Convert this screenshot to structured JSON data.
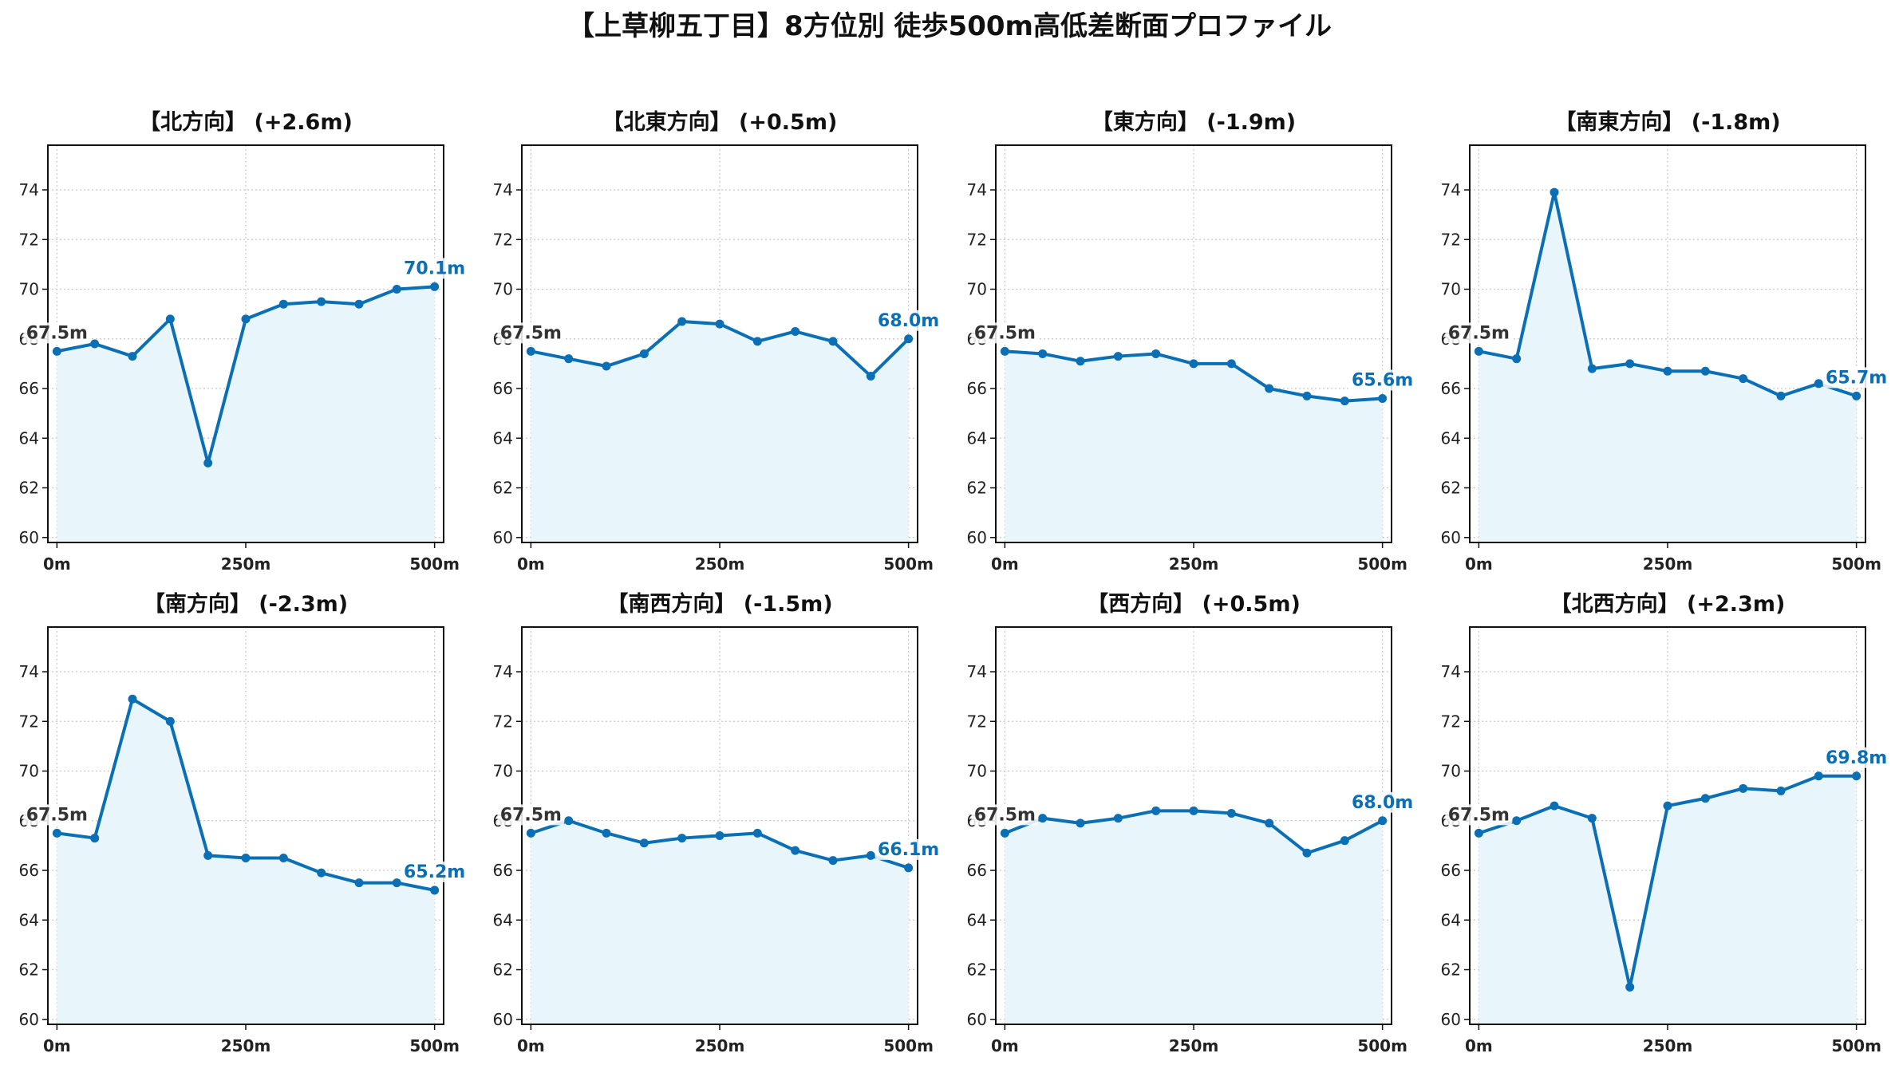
{
  "figure_title": "【上草柳五丁目】8方位別 徒歩500m高低差断面プロファイル",
  "colors": {
    "line": "#1f77b4",
    "line_dark": "#0a6fb5",
    "fill": "#e8f5fb",
    "grid": "#c8c8c8"
  },
  "chart_data": [
    {
      "type": "area",
      "title": "【北方向】 (+2.6m)",
      "x": [
        0,
        50,
        100,
        150,
        200,
        250,
        300,
        350,
        400,
        450,
        500
      ],
      "y": [
        67.5,
        67.8,
        67.3,
        68.8,
        63.0,
        68.8,
        69.4,
        69.5,
        69.4,
        70.0,
        70.1
      ],
      "xticks": [
        "0m",
        "250m",
        "500m"
      ],
      "yticks": [
        60,
        62,
        64,
        66,
        68,
        70,
        72,
        74
      ],
      "ylim": [
        59.8,
        75.8
      ],
      "xlim": [
        -12,
        512
      ],
      "start_label": "67.5m",
      "end_label": "70.1m",
      "grid": true
    },
    {
      "type": "area",
      "title": "【北東方向】 (+0.5m)",
      "x": [
        0,
        50,
        100,
        150,
        200,
        250,
        300,
        350,
        400,
        450,
        500
      ],
      "y": [
        67.5,
        67.2,
        66.9,
        67.4,
        68.7,
        68.6,
        67.9,
        68.3,
        67.9,
        66.5,
        68.0
      ],
      "xticks": [
        "0m",
        "250m",
        "500m"
      ],
      "yticks": [
        60,
        62,
        64,
        66,
        68,
        70,
        72,
        74
      ],
      "ylim": [
        59.8,
        75.8
      ],
      "xlim": [
        -12,
        512
      ],
      "start_label": "67.5m",
      "end_label": "68.0m",
      "grid": true
    },
    {
      "type": "area",
      "title": "【東方向】 (-1.9m)",
      "x": [
        0,
        50,
        100,
        150,
        200,
        250,
        300,
        350,
        400,
        450,
        500
      ],
      "y": [
        67.5,
        67.4,
        67.1,
        67.3,
        67.4,
        67.0,
        67.0,
        66.0,
        65.7,
        65.5,
        65.6
      ],
      "xticks": [
        "0m",
        "250m",
        "500m"
      ],
      "yticks": [
        60,
        62,
        64,
        66,
        68,
        70,
        72,
        74
      ],
      "ylim": [
        59.8,
        75.8
      ],
      "xlim": [
        -12,
        512
      ],
      "start_label": "67.5m",
      "end_label": "65.6m",
      "grid": true
    },
    {
      "type": "area",
      "title": "【南東方向】 (-1.8m)",
      "x": [
        0,
        50,
        100,
        150,
        200,
        250,
        300,
        350,
        400,
        450,
        500
      ],
      "y": [
        67.5,
        67.2,
        73.9,
        66.8,
        67.0,
        66.7,
        66.7,
        66.4,
        65.7,
        66.2,
        65.7
      ],
      "xticks": [
        "0m",
        "250m",
        "500m"
      ],
      "yticks": [
        60,
        62,
        64,
        66,
        68,
        70,
        72,
        74
      ],
      "ylim": [
        59.8,
        75.8
      ],
      "xlim": [
        -12,
        512
      ],
      "start_label": "67.5m",
      "end_label": "65.7m",
      "grid": true
    },
    {
      "type": "area",
      "title": "【南方向】 (-2.3m)",
      "x": [
        0,
        50,
        100,
        150,
        200,
        250,
        300,
        350,
        400,
        450,
        500
      ],
      "y": [
        67.5,
        67.3,
        72.9,
        72.0,
        66.6,
        66.5,
        66.5,
        65.9,
        65.5,
        65.5,
        65.2
      ],
      "xticks": [
        "0m",
        "250m",
        "500m"
      ],
      "yticks": [
        60,
        62,
        64,
        66,
        68,
        70,
        72,
        74
      ],
      "ylim": [
        59.8,
        75.8
      ],
      "xlim": [
        -12,
        512
      ],
      "start_label": "67.5m",
      "end_label": "65.2m",
      "grid": true
    },
    {
      "type": "area",
      "title": "【南西方向】 (-1.5m)",
      "x": [
        0,
        50,
        100,
        150,
        200,
        250,
        300,
        350,
        400,
        450,
        500
      ],
      "y": [
        67.5,
        68.0,
        67.5,
        67.1,
        67.3,
        67.4,
        67.5,
        66.8,
        66.4,
        66.6,
        66.1
      ],
      "xticks": [
        "0m",
        "250m",
        "500m"
      ],
      "yticks": [
        60,
        62,
        64,
        66,
        68,
        70,
        72,
        74
      ],
      "ylim": [
        59.8,
        75.8
      ],
      "xlim": [
        -12,
        512
      ],
      "start_label": "67.5m",
      "end_label": "66.1m",
      "grid": true
    },
    {
      "type": "area",
      "title": "【西方向】 (+0.5m)",
      "x": [
        0,
        50,
        100,
        150,
        200,
        250,
        300,
        350,
        400,
        450,
        500
      ],
      "y": [
        67.5,
        68.1,
        67.9,
        68.1,
        68.4,
        68.4,
        68.3,
        67.9,
        66.7,
        67.2,
        68.0
      ],
      "xticks": [
        "0m",
        "250m",
        "500m"
      ],
      "yticks": [
        60,
        62,
        64,
        66,
        68,
        70,
        72,
        74
      ],
      "ylim": [
        59.8,
        75.8
      ],
      "xlim": [
        -12,
        512
      ],
      "start_label": "67.5m",
      "end_label": "68.0m",
      "grid": true
    },
    {
      "type": "area",
      "title": "【北西方向】 (+2.3m)",
      "x": [
        0,
        50,
        100,
        150,
        200,
        250,
        300,
        350,
        400,
        450,
        500
      ],
      "y": [
        67.5,
        68.0,
        68.6,
        68.1,
        61.3,
        68.6,
        68.9,
        69.3,
        69.2,
        69.8,
        69.8
      ],
      "xticks": [
        "0m",
        "250m",
        "500m"
      ],
      "yticks": [
        60,
        62,
        64,
        66,
        68,
        70,
        72,
        74
      ],
      "ylim": [
        59.8,
        75.8
      ],
      "xlim": [
        -12,
        512
      ],
      "start_label": "67.5m",
      "end_label": "69.8m",
      "grid": true
    }
  ]
}
